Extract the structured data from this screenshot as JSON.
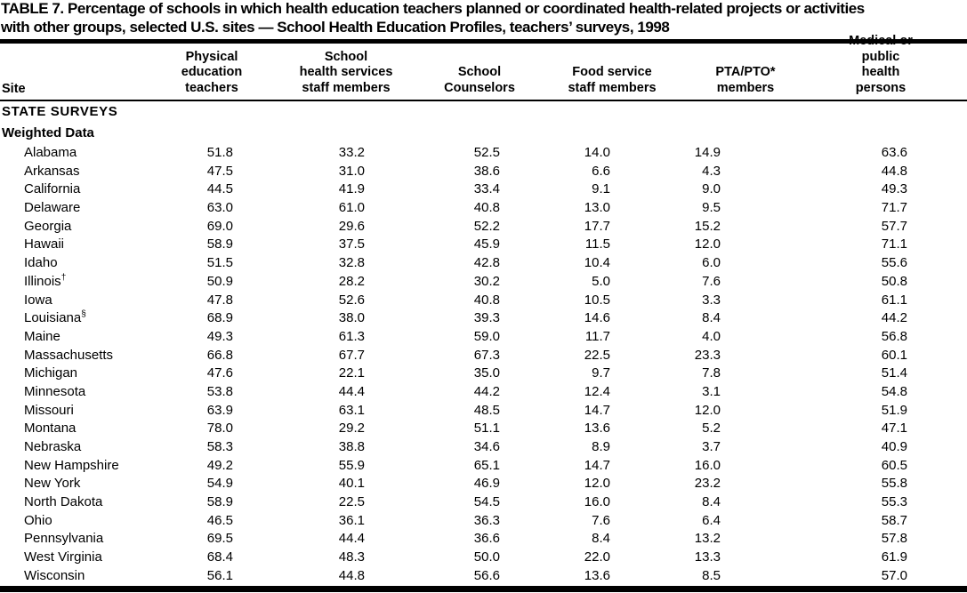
{
  "page": {
    "background": "#ffffff",
    "text_color": "#000000"
  },
  "title": "TABLE 7. Percentage of schools in which health education teachers planned or coordinated health-related projects or activities\nwith other groups, selected U.S. sites — School Health Education Profiles, teachers’ surveys, 1998",
  "table": {
    "site_header": "Site",
    "columns": [
      {
        "label": "Physical\neducation\nteachers"
      },
      {
        "label": "School\nhealth services\nstaff members"
      },
      {
        "label": "School\nCounselors"
      },
      {
        "label": "Food service\nstaff members"
      },
      {
        "label": "PTA/PTO*\nmembers"
      },
      {
        "label": "Medical or public\nhealth persons"
      }
    ],
    "group_heading": "STATE SURVEYS",
    "subgroup_heading": "Weighted Data",
    "rows": [
      {
        "site": "Alabama",
        "sup": "",
        "values": [
          "51.8",
          "33.2",
          "52.5",
          "14.0",
          "14.9",
          "63.6"
        ]
      },
      {
        "site": "Arkansas",
        "sup": "",
        "values": [
          "47.5",
          "31.0",
          "38.6",
          "6.6",
          "4.3",
          "44.8"
        ]
      },
      {
        "site": "California",
        "sup": "",
        "values": [
          "44.5",
          "41.9",
          "33.4",
          "9.1",
          "9.0",
          "49.3"
        ]
      },
      {
        "site": "Delaware",
        "sup": "",
        "values": [
          "63.0",
          "61.0",
          "40.8",
          "13.0",
          "9.5",
          "71.7"
        ]
      },
      {
        "site": "Georgia",
        "sup": "",
        "values": [
          "69.0",
          "29.6",
          "52.2",
          "17.7",
          "15.2",
          "57.7"
        ]
      },
      {
        "site": "Hawaii",
        "sup": "",
        "values": [
          "58.9",
          "37.5",
          "45.9",
          "11.5",
          "12.0",
          "71.1"
        ]
      },
      {
        "site": "Idaho",
        "sup": "",
        "values": [
          "51.5",
          "32.8",
          "42.8",
          "10.4",
          "6.0",
          "55.6"
        ]
      },
      {
        "site": "Illinois",
        "sup": "†",
        "values": [
          "50.9",
          "28.2",
          "30.2",
          "5.0",
          "7.6",
          "50.8"
        ]
      },
      {
        "site": "Iowa",
        "sup": "",
        "values": [
          "47.8",
          "52.6",
          "40.8",
          "10.5",
          "3.3",
          "61.1"
        ]
      },
      {
        "site": "Louisiana",
        "sup": "§",
        "values": [
          "68.9",
          "38.0",
          "39.3",
          "14.6",
          "8.4",
          "44.2"
        ]
      },
      {
        "site": "Maine",
        "sup": "",
        "values": [
          "49.3",
          "61.3",
          "59.0",
          "11.7",
          "4.0",
          "56.8"
        ]
      },
      {
        "site": "Massachusetts",
        "sup": "",
        "values": [
          "66.8",
          "67.7",
          "67.3",
          "22.5",
          "23.3",
          "60.1"
        ]
      },
      {
        "site": "Michigan",
        "sup": "",
        "values": [
          "47.6",
          "22.1",
          "35.0",
          "9.7",
          "7.8",
          "51.4"
        ]
      },
      {
        "site": "Minnesota",
        "sup": "",
        "values": [
          "53.8",
          "44.4",
          "44.2",
          "12.4",
          "3.1",
          "54.8"
        ]
      },
      {
        "site": "Missouri",
        "sup": "",
        "values": [
          "63.9",
          "63.1",
          "48.5",
          "14.7",
          "12.0",
          "51.9"
        ]
      },
      {
        "site": "Montana",
        "sup": "",
        "values": [
          "78.0",
          "29.2",
          "51.1",
          "13.6",
          "5.2",
          "47.1"
        ]
      },
      {
        "site": "Nebraska",
        "sup": "",
        "values": [
          "58.3",
          "38.8",
          "34.6",
          "8.9",
          "3.7",
          "40.9"
        ]
      },
      {
        "site": "New Hampshire",
        "sup": "",
        "values": [
          "49.2",
          "55.9",
          "65.1",
          "14.7",
          "16.0",
          "60.5"
        ]
      },
      {
        "site": "New York",
        "sup": "",
        "values": [
          "54.9",
          "40.1",
          "46.9",
          "12.0",
          "23.2",
          "55.8"
        ]
      },
      {
        "site": "North Dakota",
        "sup": "",
        "values": [
          "58.9",
          "22.5",
          "54.5",
          "16.0",
          "8.4",
          "55.3"
        ]
      },
      {
        "site": "Ohio",
        "sup": "",
        "values": [
          "46.5",
          "36.1",
          "36.3",
          "7.6",
          "6.4",
          "58.7"
        ]
      },
      {
        "site": "Pennsylvania",
        "sup": "",
        "values": [
          "69.5",
          "44.4",
          "36.6",
          "8.4",
          "13.2",
          "57.8"
        ]
      },
      {
        "site": "West Virginia",
        "sup": "",
        "values": [
          "68.4",
          "48.3",
          "50.0",
          "22.0",
          "13.3",
          "61.9"
        ]
      },
      {
        "site": "Wisconsin",
        "sup": "",
        "values": [
          "56.1",
          "44.8",
          "56.6",
          "13.6",
          "8.5",
          "57.0"
        ]
      }
    ]
  }
}
